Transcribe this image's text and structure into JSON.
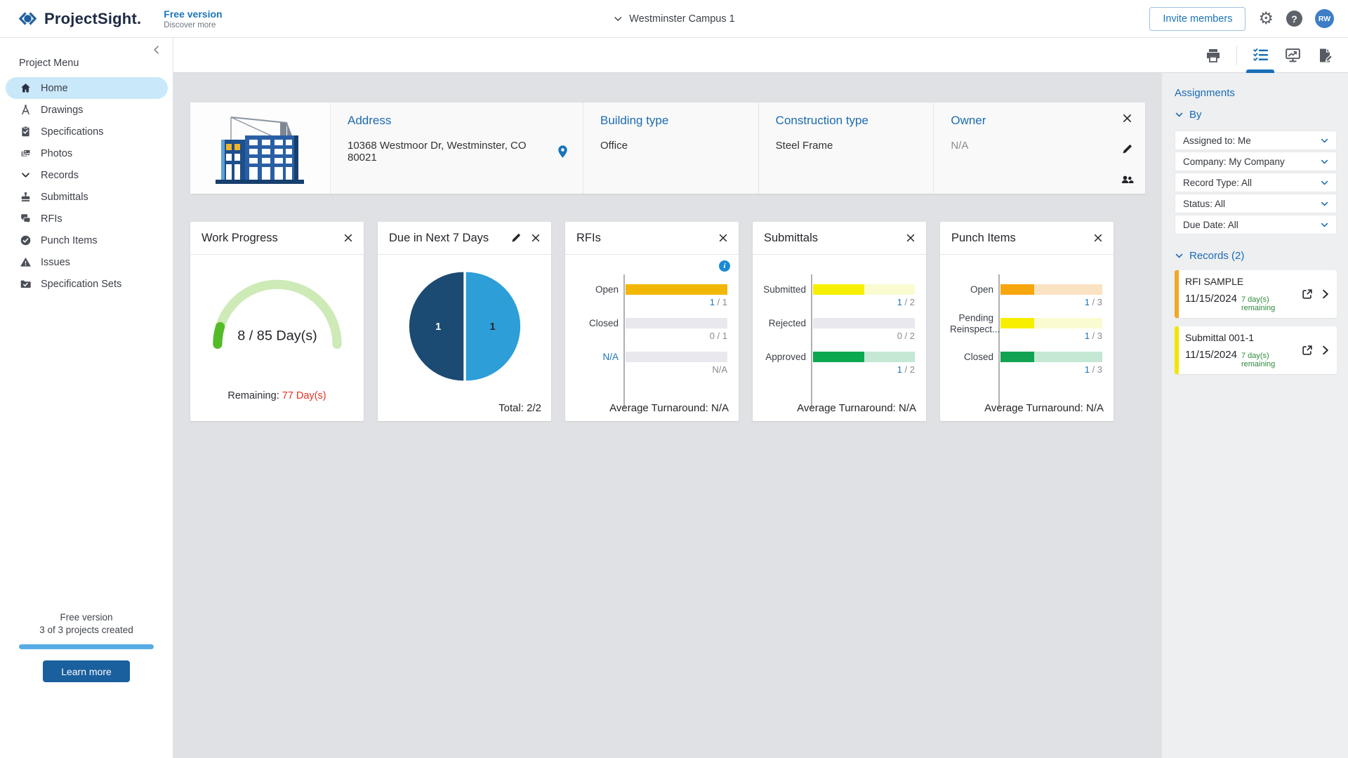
{
  "header": {
    "logo_text": "ProjectSight.",
    "free_version_label": "Free version",
    "discover_more_label": "Discover more",
    "project_selector": "Westminster Campus 1",
    "invite_button": "Invite members",
    "help_glyph": "?",
    "avatar_initials": "RW",
    "collapse_glyph": "‹"
  },
  "sidebar": {
    "title": "Project Menu",
    "items": [
      {
        "label": "Home"
      },
      {
        "label": "Drawings"
      },
      {
        "label": "Specifications"
      },
      {
        "label": "Photos"
      },
      {
        "label": "Records"
      },
      {
        "label": "Submittals"
      },
      {
        "label": "RFIs"
      },
      {
        "label": "Punch Items"
      },
      {
        "label": "Issues"
      },
      {
        "label": "Specification Sets"
      }
    ],
    "footer": {
      "line1": "Free version",
      "line2": "3 of 3 projects created",
      "projects_used": 3,
      "projects_total": 3,
      "learn_more_button": "Learn more"
    }
  },
  "info_card": {
    "fields": [
      {
        "label": "Address",
        "value": "10368 Westmoor Dr, Westminster, CO 80021"
      },
      {
        "label": "Building type",
        "value": "Office"
      },
      {
        "label": "Construction type",
        "value": "Steel Frame"
      },
      {
        "label": "Owner",
        "value": "N/A"
      }
    ]
  },
  "widgets": {
    "work_progress": {
      "title": "Work Progress",
      "current": 8,
      "total": 85,
      "center_label": "8 / 85 Day(s)",
      "remaining_label": "Remaining: ",
      "remaining_value": "77 Day(s)",
      "track_color": "#cdeab7",
      "fill_color": "#54bb28"
    },
    "due_next_7": {
      "title": "Due in Next 7 Days",
      "slices": [
        {
          "value": 1,
          "color": "#1b4a73"
        },
        {
          "value": 1,
          "color": "#2d9ed8"
        }
      ],
      "total_label": "Total: 2/2"
    },
    "rfis": {
      "title": "RFIs",
      "average_label": "Average Turnaround: N/A",
      "rows": [
        {
          "label": "Open",
          "val": "1",
          "rest": " / 1",
          "frac": 1,
          "color": "#f2b705",
          "pale": "#f2b705"
        },
        {
          "label": "Closed",
          "val": "",
          "rest": "0 / 1",
          "frac": 0,
          "color": "#e8e8ee",
          "pale": "#e8e8ee"
        },
        {
          "label": "N/A",
          "val": "",
          "rest": "N/A",
          "frac": 0,
          "color": "#e8e8ee",
          "pale": "#e8e8ee"
        }
      ]
    },
    "submittals": {
      "title": "Submittals",
      "average_label": "Average Turnaround: N/A",
      "rows": [
        {
          "label": "Submitted",
          "val": "1",
          "rest": " / 2",
          "frac": 0.5,
          "color": "#f7ef00",
          "pale": "#fafbd0"
        },
        {
          "label": "Rejected",
          "val": "",
          "rest": "0 / 2",
          "frac": 0,
          "color": "#e8e8ee",
          "pale": "#e8e8ee"
        },
        {
          "label": "Approved",
          "val": "1",
          "rest": " / 2",
          "frac": 0.5,
          "color": "#0ba84f",
          "pale": "#c4e8d3"
        }
      ]
    },
    "punch_items": {
      "title": "Punch Items",
      "average_label": "Average Turnaround: N/A",
      "rows": [
        {
          "label": "Open",
          "val": "1",
          "rest": " / 3",
          "frac": 0.333,
          "color": "#f7a60d",
          "pale": "#fae3c2"
        },
        {
          "label": "Pending Reinspect...",
          "val": "1",
          "rest": " / 3",
          "frac": 0.333,
          "color": "#f7ef00",
          "pale": "#fafbd0"
        },
        {
          "label": "Closed",
          "val": "1",
          "rest": " / 3",
          "frac": 0.333,
          "color": "#11a352",
          "pale": "#c4e8d3"
        }
      ]
    }
  },
  "assignments": {
    "title": "Assignments",
    "by_label": "By",
    "filters": [
      "Assigned to: Me",
      "Company: My Company",
      "Record Type: All",
      "Status: All",
      "Due Date: All"
    ],
    "records_label": "Records (2)",
    "records": [
      {
        "title": "RFI SAMPLE",
        "date": "11/15/2024",
        "remaining": "7 day(s) remaining",
        "accent": "#f5a623"
      },
      {
        "title": "Submittal 001-1",
        "date": "11/15/2024",
        "remaining": "7 day(s) remaining",
        "accent": "#f2e600"
      }
    ]
  }
}
